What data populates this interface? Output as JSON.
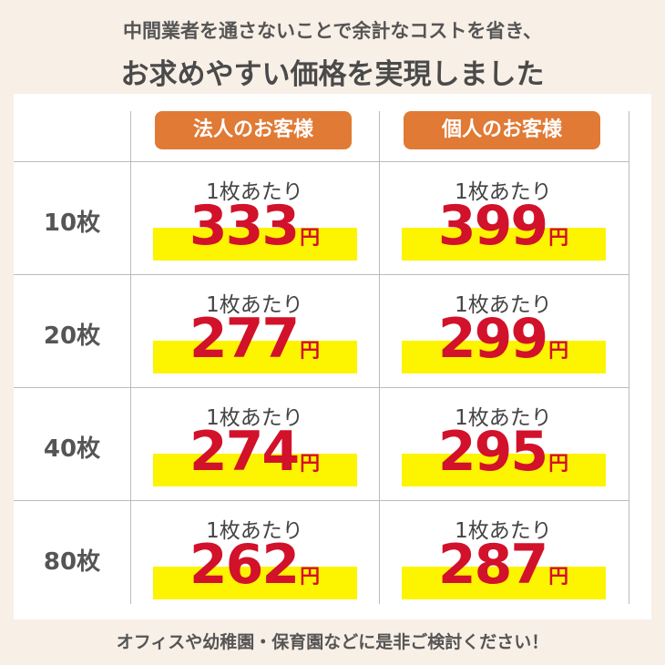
{
  "header": {
    "line1": "中間業者を通さないことで余計なコストを省き、",
    "line2": "お求めやすい価格を実現しました"
  },
  "table": {
    "columns": [
      "法人のお客様",
      "個人のお客様"
    ],
    "rows": [
      {
        "label": "10枚",
        "cells": [
          {
            "note": "1枚あたり",
            "price": 333,
            "unit": "円"
          },
          {
            "note": "1枚あたり",
            "price": 399,
            "unit": "円"
          }
        ]
      },
      {
        "label": "20枚",
        "cells": [
          {
            "note": "1枚あたり",
            "price": 277,
            "unit": "円"
          },
          {
            "note": "1枚あたり",
            "price": 299,
            "unit": "円"
          }
        ]
      },
      {
        "label": "40枚",
        "cells": [
          {
            "note": "1枚あたり",
            "price": 274,
            "unit": "円"
          },
          {
            "note": "1枚あたり",
            "price": 295,
            "unit": "円"
          }
        ]
      },
      {
        "label": "80枚",
        "cells": [
          {
            "note": "1枚あたり",
            "price": 262,
            "unit": "円"
          },
          {
            "note": "1枚あたり",
            "price": 287,
            "unit": "円"
          }
        ]
      }
    ]
  },
  "footer": "オフィスや幼稚園・保育園などに是非ご検討ください！"
}
